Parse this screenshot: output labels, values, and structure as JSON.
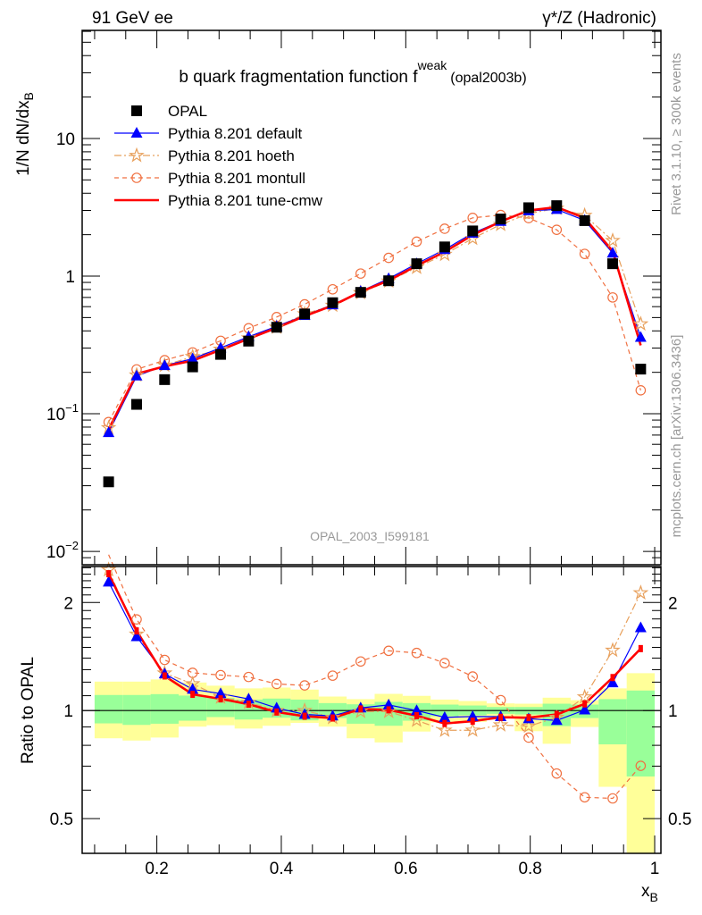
{
  "header": {
    "left": "91 GeV ee",
    "right": "γ*/Z (Hadronic)"
  },
  "side_text": {
    "top": "Rivet 3.1.10, ≥ 300k events",
    "bottom": "mcplots.cern.ch [arXiv:1306.3436]"
  },
  "colors": {
    "opal": "#000000",
    "default": "#0000ff",
    "hoeth": "#e8a05c",
    "montull": "#f07040",
    "cmw": "#ff0000",
    "band_yellow": "#ffff99",
    "band_green": "#99ff99"
  },
  "chart_data": {
    "type": "line",
    "title": "b quark fragmentation function f",
    "title_sup": "weak",
    "title_sub": "(opal2003b)",
    "watermark": "OPAL_2003_I599181",
    "xlabel": "x",
    "xlabel_sub": "B",
    "ylabel": "1/N dN/dx",
    "ylabel_sub": "B",
    "ratio_ylabel": "Ratio to OPAL",
    "xlim": [
      0.08,
      1.01
    ],
    "ylim": [
      0.008,
      61
    ],
    "yscale": "log",
    "ratio_ylim": [
      0.4,
      2.52
    ],
    "x_ticks": [
      "0.2",
      "0.4",
      "0.6",
      "0.8",
      "1"
    ],
    "y_ticks": [
      {
        "v": 10,
        "base": "10",
        "exp": ""
      },
      {
        "v": 1,
        "base": "1",
        "exp": ""
      },
      {
        "v": 0.1,
        "base": "10",
        "exp": "−1"
      },
      {
        "v": 0.01,
        "base": "10",
        "exp": "−2"
      }
    ],
    "ratio_ticks": [
      "0.5",
      "1",
      "2"
    ],
    "legend_position": "top-left",
    "x": [
      0.1225,
      0.1675,
      0.2125,
      0.2575,
      0.3025,
      0.3475,
      0.3925,
      0.4375,
      0.4825,
      0.5275,
      0.5725,
      0.6175,
      0.6625,
      0.7075,
      0.7525,
      0.7975,
      0.8425,
      0.8875,
      0.9325,
      0.9775
    ],
    "bin_width": 0.045,
    "series": [
      {
        "key": "opal",
        "name": "OPAL",
        "style": "data",
        "values": [
          0.032,
          0.117,
          0.177,
          0.219,
          0.27,
          0.337,
          0.425,
          0.531,
          0.641,
          0.762,
          0.925,
          1.23,
          1.63,
          2.13,
          2.6,
          3.14,
          3.25,
          2.53,
          1.23,
          0.211
        ]
      },
      {
        "key": "default",
        "name": "Pythia 8.201 default",
        "style": "solid-triangle",
        "values": [
          0.073,
          0.188,
          0.224,
          0.251,
          0.301,
          0.363,
          0.432,
          0.518,
          0.619,
          0.775,
          0.959,
          1.23,
          1.56,
          2.05,
          2.5,
          2.98,
          3.05,
          2.54,
          1.47,
          0.359
        ]
      },
      {
        "key": "hoeth",
        "name": "Pythia 8.201 hoeth",
        "style": "dashdot-star",
        "values": [
          0.079,
          0.191,
          0.225,
          0.26,
          0.294,
          0.355,
          0.425,
          0.531,
          0.613,
          0.757,
          0.919,
          1.155,
          1.436,
          1.877,
          2.37,
          2.84,
          3.11,
          2.76,
          1.81,
          0.449
        ]
      },
      {
        "key": "montull",
        "name": "Pythia 8.201 montull",
        "style": "dashed-circle",
        "values": [
          0.087,
          0.21,
          0.245,
          0.279,
          0.339,
          0.418,
          0.504,
          0.624,
          0.802,
          1.044,
          1.357,
          1.78,
          2.21,
          2.65,
          2.78,
          2.64,
          2.17,
          1.45,
          0.7,
          0.148
        ]
      },
      {
        "key": "cmw",
        "name": "Pythia 8.201 tune-cmw",
        "style": "thick-solid",
        "values": [
          0.077,
          0.195,
          0.221,
          0.243,
          0.291,
          0.351,
          0.421,
          0.512,
          0.611,
          0.77,
          0.929,
          1.19,
          1.5,
          1.99,
          2.49,
          3.0,
          3.17,
          2.64,
          1.52,
          0.314
        ]
      }
    ],
    "ratio_band_yellow": [
      [
        0.837,
        1.204
      ],
      [
        0.825,
        1.204
      ],
      [
        0.841,
        1.221
      ],
      [
        0.902,
        1.197
      ],
      [
        0.91,
        1.173
      ],
      [
        0.891,
        1.153
      ],
      [
        0.907,
        1.159
      ],
      [
        0.924,
        1.144
      ],
      [
        0.902,
        1.094
      ],
      [
        0.837,
        1.076
      ],
      [
        0.815,
        1.113
      ],
      [
        0.874,
        1.099
      ],
      [
        0.926,
        1.073
      ],
      [
        0.93,
        1.063
      ],
      [
        0.957,
        1.047
      ],
      [
        0.876,
        1.045
      ],
      [
        0.808,
        1.086
      ],
      [
        0.9,
        1.069
      ],
      [
        0.613,
        1.153
      ],
      [
        0.35,
        1.271
      ]
    ],
    "ratio_band_green": [
      [
        0.921,
        1.105
      ],
      [
        0.912,
        1.105
      ],
      [
        0.919,
        1.111
      ],
      [
        0.937,
        1.101
      ],
      [
        0.959,
        1.084
      ],
      [
        0.944,
        1.073
      ],
      [
        0.955,
        1.08
      ],
      [
        0.939,
        1.073
      ],
      [
        0.953,
        1.049
      ],
      [
        0.919,
        1.041
      ],
      [
        0.907,
        1.057
      ],
      [
        0.937,
        1.049
      ],
      [
        0.964,
        1.039
      ],
      [
        0.97,
        1.033
      ],
      [
        0.979,
        1.023
      ],
      [
        0.975,
        1.023
      ],
      [
        0.905,
        1.045
      ],
      [
        0.953,
        1.039
      ],
      [
        0.805,
        1.076
      ],
      [
        0.655,
        1.137
      ]
    ]
  }
}
